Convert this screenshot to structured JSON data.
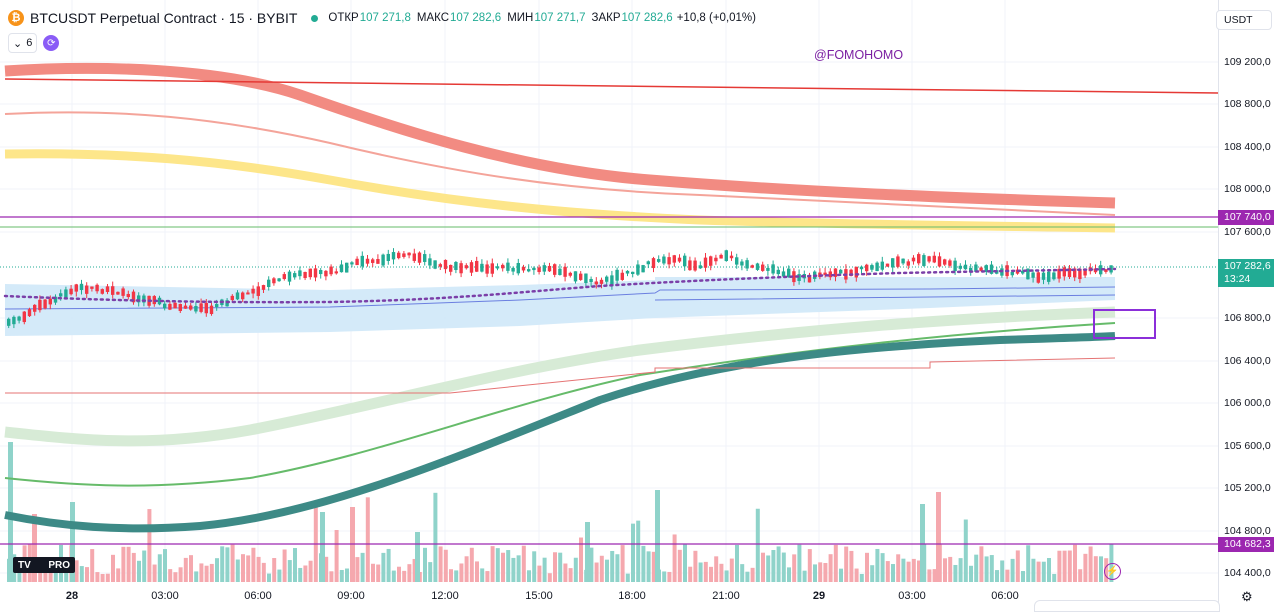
{
  "header": {
    "logo_glyph": "₿",
    "symbol": "BTCUSDT Perpetual Contract · 15 · BYBIT",
    "ohlc": [
      {
        "key": "ОТКР",
        "value": "107 271,8"
      },
      {
        "key": "МАКС",
        "value": "107 282,6"
      },
      {
        "key": "МИН",
        "value": "107 271,7"
      },
      {
        "key": "ЗАКР",
        "value": "107 282,6"
      }
    ],
    "change": "+10,8 (+0,01%)",
    "indicator_count": "6",
    "collapse_glyph": "⌄",
    "sync_glyph": "⟳"
  },
  "watermark": "@FOMOHOMO",
  "currency_button": "USDT",
  "currency_icon": "chevron-down-icon",
  "y_axis_ticks": [
    "109 200,0",
    "108 800,0",
    "108 400,0",
    "108 000,0",
    "107 600,0",
    "106 800,0",
    "106 400,0",
    "106 000,0",
    "105 600,0",
    "105 200,0",
    "104 800,0",
    "104 400,0"
  ],
  "price_labels": {
    "level_high": "107 740,0",
    "last_price": "107 282,6",
    "countdown": "13:24",
    "level_low": "104 682,3"
  },
  "x_axis_ticks": [
    {
      "label": "28",
      "bold": true
    },
    {
      "label": "03:00",
      "bold": false
    },
    {
      "label": "06:00",
      "bold": false
    },
    {
      "label": "09:00",
      "bold": false
    },
    {
      "label": "12:00",
      "bold": false
    },
    {
      "label": "15:00",
      "bold": false
    },
    {
      "label": "18:00",
      "bold": false
    },
    {
      "label": "21:00",
      "bold": false
    },
    {
      "label": "29",
      "bold": true
    },
    {
      "label": "03:00",
      "bold": false
    },
    {
      "label": "06:00",
      "bold": false
    }
  ],
  "logo_text": "TV",
  "logo_badge": "PRO",
  "bolt_glyph": "⚡",
  "settings_glyph": "⚙",
  "colors": {
    "up": "#22ab94",
    "down": "#f23645",
    "level_line": "#9c27b0",
    "ema_red": "#f28b82",
    "ema_yellow": "#fde68a",
    "ema_teal": "#3d8a86",
    "ema_green": "#66bb6a",
    "band": "#bfe1f6"
  },
  "chart_data": {
    "type": "candlestick",
    "price_levels": [
      107740.0,
      104682.3
    ],
    "last_close": 107282.6,
    "y_range": [
      104300,
      109300
    ]
  }
}
